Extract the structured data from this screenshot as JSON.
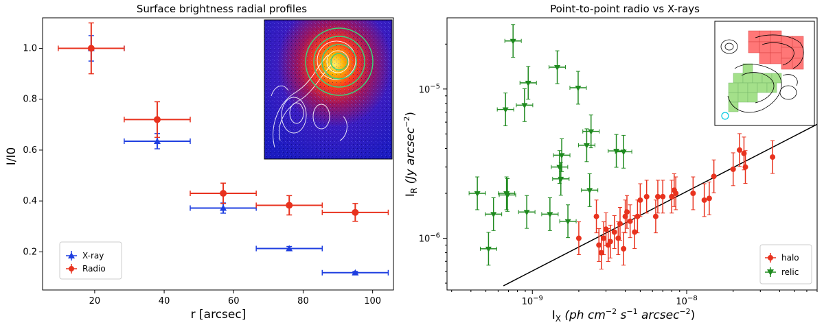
{
  "colors": {
    "xray": "#1f3fe0",
    "radio": "#e8321e",
    "halo": "#e8321e",
    "relic": "#1f8a1f",
    "fit": "#000000"
  },
  "chart_data": [
    {
      "type": "scatter",
      "title": "Surface brightness radial profiles",
      "xlabel": "r [arcsec]",
      "ylabel": "I/I0",
      "xlim": [
        5,
        106
      ],
      "ylim": [
        0.05,
        1.12
      ],
      "xticks": [
        "20",
        "40",
        "60",
        "80",
        "100"
      ],
      "yticks": [
        "0.2",
        "0.4",
        "0.6",
        "0.8",
        "1.0"
      ],
      "legend": {
        "position": "lower-left",
        "entries": [
          "X-ray",
          "Radio"
        ]
      },
      "series": [
        {
          "name": "X-ray",
          "marker": "triangle",
          "points": [
            {
              "x": 19,
              "y": 1.0,
              "xerr": 9.5,
              "yerr": 0.05
            },
            {
              "x": 38,
              "y": 0.635,
              "xerr": 9.5,
              "yerr": 0.03
            },
            {
              "x": 57,
              "y": 0.372,
              "xerr": 9.5,
              "yerr": 0.02
            },
            {
              "x": 76,
              "y": 0.213,
              "xerr": 9.5,
              "yerr": 0.008
            },
            {
              "x": 95,
              "y": 0.118,
              "xerr": 9.5,
              "yerr": 0.005
            }
          ]
        },
        {
          "name": "Radio",
          "marker": "circle",
          "points": [
            {
              "x": 19,
              "y": 1.0,
              "xerr": 9.5,
              "yerr": 0.1
            },
            {
              "x": 38,
              "y": 0.72,
              "xerr": 9.5,
              "yerr": 0.07
            },
            {
              "x": 57,
              "y": 0.43,
              "xerr": 9.5,
              "yerr": 0.04
            },
            {
              "x": 76,
              "y": 0.383,
              "xerr": 9.5,
              "yerr": 0.038
            },
            {
              "x": 95,
              "y": 0.355,
              "xerr": 9.5,
              "yerr": 0.035
            }
          ]
        }
      ],
      "inset": "X-ray image with white radio contours and green annuli"
    },
    {
      "type": "scatter",
      "scale": "log-log",
      "title": "Point-to-point radio vs X-rays",
      "xlabel": "I_X (ph cm^-2 s^-1 arcsec^-2)",
      "ylabel": "I_R (Jy arcsec^-2)",
      "xlim": [
        2.8e-10,
        7e-08
      ],
      "ylim": [
        4.5e-07,
        3e-05
      ],
      "xticks": [
        "10^-9",
        "10^-8"
      ],
      "yticks": [
        "10^-6",
        "10^-5"
      ],
      "legend": {
        "position": "lower-right",
        "entries": [
          "halo",
          "relic"
        ]
      },
      "fit_line": {
        "x": [
          6.5e-10,
          7e-08
        ],
        "y": [
          4.8e-07,
          5.8e-06
        ]
      },
      "series": [
        {
          "name": "halo",
          "marker": "circle",
          "points": [
            [
              2e-09,
              1e-06
            ],
            [
              2.6e-09,
              1.4e-06
            ],
            [
              2.7e-09,
              9e-07
            ],
            [
              2.8e-09,
              8e-07
            ],
            [
              2.9e-09,
              1e-06
            ],
            [
              3e-09,
              1.15e-06
            ],
            [
              3.1e-09,
              9e-07
            ],
            [
              3.2e-09,
              9.5e-07
            ],
            [
              3.4e-09,
              1.1e-06
            ],
            [
              3.6e-09,
              1e-06
            ],
            [
              3.7e-09,
              1.25e-06
            ],
            [
              3.9e-09,
              8.5e-07
            ],
            [
              4e-09,
              1.4e-06
            ],
            [
              4.1e-09,
              1.5e-06
            ],
            [
              4.3e-09,
              1.3e-06
            ],
            [
              4.6e-09,
              1.1e-06
            ],
            [
              4.8e-09,
              1.4e-06
            ],
            [
              5e-09,
              1.8e-06
            ],
            [
              5.5e-09,
              1.9e-06
            ],
            [
              6.3e-09,
              1.4e-06
            ],
            [
              6.5e-09,
              1.9e-06
            ],
            [
              7e-09,
              1.9e-06
            ],
            [
              8e-09,
              1.9e-06
            ],
            [
              8.3e-09,
              2.1e-06
            ],
            [
              8.5e-09,
              2e-06
            ],
            [
              1.1e-08,
              2e-06
            ],
            [
              1.3e-08,
              1.8e-06
            ],
            [
              1.4e-08,
              1.85e-06
            ],
            [
              1.5e-08,
              2.6e-06
            ],
            [
              2e-08,
              2.9e-06
            ],
            [
              2.2e-08,
              3.9e-06
            ],
            [
              2.35e-08,
              3.7e-06
            ],
            [
              2.4e-08,
              3e-06
            ],
            [
              3.6e-08,
              3.5e-06
            ]
          ]
        },
        {
          "name": "relic",
          "marker": "triangle-down",
          "points": [
            [
              4.4e-10,
              2e-06
            ],
            [
              5.2e-10,
              8.5e-07
            ],
            [
              5.6e-10,
              1.45e-06
            ],
            [
              6.7e-10,
              7.3e-06
            ],
            [
              6.8e-10,
              2e-06
            ],
            [
              6.9e-10,
              1.95e-06
            ],
            [
              7.5e-10,
              2.1e-05
            ],
            [
              8.9e-10,
              7.8e-06
            ],
            [
              9.2e-10,
              1.5e-06
            ],
            [
              9.4e-10,
              1.1e-05
            ],
            [
              1.3e-09,
              1.45e-06
            ],
            [
              1.45e-09,
              1.4e-05
            ],
            [
              1.5e-09,
              3e-06
            ],
            [
              1.53e-09,
              2.5e-06
            ],
            [
              1.55e-09,
              3.6e-06
            ],
            [
              1.7e-09,
              1.3e-06
            ],
            [
              1.98e-09,
              1.02e-05
            ],
            [
              2.25e-09,
              4.2e-06
            ],
            [
              2.35e-09,
              2.1e-06
            ],
            [
              2.4e-09,
              5.2e-06
            ],
            [
              3.5e-09,
              3.85e-06
            ],
            [
              3.9e-09,
              3.8e-06
            ]
          ]
        }
      ],
      "inset": "Contour map with red halo and green relic sample regions"
    }
  ]
}
